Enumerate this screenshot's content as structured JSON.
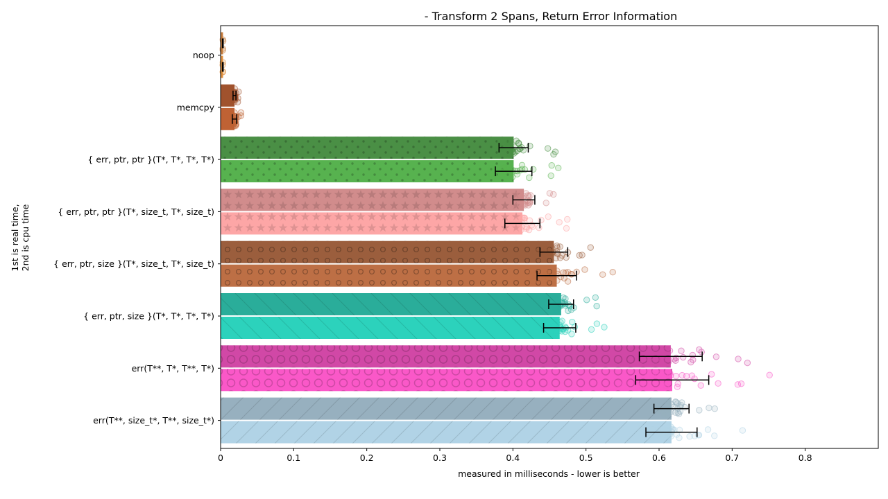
{
  "chart_data": {
    "type": "bar",
    "orientation": "horizontal",
    "title": "- Transform 2 Spans, Return Error Information",
    "xlabel": "measured in milliseconds - lower is better",
    "ylabel_line1": "1st is real time,",
    "ylabel_line2": "2nd is cpu time",
    "xlim": [
      0,
      0.9
    ],
    "x_ticks": [
      0,
      0.1,
      0.2,
      0.3,
      0.4,
      0.5,
      0.6,
      0.7,
      0.8
    ],
    "x_tick_labels": [
      "0",
      "0.1",
      "0.2",
      "0.3",
      "0.4",
      "0.5",
      "0.6",
      "0.7",
      "0.8"
    ],
    "grid": false,
    "series": [
      {
        "name": "real time"
      },
      {
        "name": "cpu time"
      }
    ],
    "categories": [
      {
        "label": "noop",
        "real": 0.003,
        "cpu": 0.003,
        "real_err": 0.0005,
        "cpu_err": 0.0005,
        "color_real": "#c97f3f",
        "color_cpu": "#e0903f",
        "pattern": "none"
      },
      {
        "label": "memcpy",
        "real": 0.019,
        "cpu": 0.019,
        "real_err": 0.002,
        "cpu_err": 0.003,
        "color_real": "#a0522d",
        "color_cpu": "#bf6234",
        "pattern": "none"
      },
      {
        "label": "{ err, ptr, ptr }(T*, T*, T*, T*)",
        "real": 0.401,
        "cpu": 0.401,
        "real_err": 0.02,
        "cpu_err": 0.025,
        "color_real": "#4a8f45",
        "color_cpu": "#57b24f",
        "pattern": "dots"
      },
      {
        "label": "{ err, ptr, ptr }(T*, size_t, T*, size_t)",
        "real": 0.415,
        "cpu": 0.413,
        "real_err": 0.015,
        "cpu_err": 0.024,
        "color_real": "#d18c8c",
        "color_cpu": "#fda6a6",
        "pattern": "stars"
      },
      {
        "label": "{ err, ptr, size }(T*, size_t, T*, size_t)",
        "real": 0.456,
        "cpu": 0.46,
        "real_err": 0.019,
        "cpu_err": 0.027,
        "color_real": "#9b5e3d",
        "color_cpu": "#bd6f45",
        "pattern": "small-circles"
      },
      {
        "label": "{ err, ptr, size }(T*, T*, T*, T*)",
        "real": 0.466,
        "cpu": 0.464,
        "real_err": 0.017,
        "cpu_err": 0.022,
        "color_real": "#2aad9a",
        "color_cpu": "#2cd2bc",
        "pattern": "backslash"
      },
      {
        "label": "err(T**, T*, T**, T*)",
        "real": 0.616,
        "cpu": 0.618,
        "real_err": 0.043,
        "cpu_err": 0.05,
        "color_real": "#d148a6",
        "color_cpu": "#fa58c8",
        "pattern": "large-circles"
      },
      {
        "label": "err(T**, size_t*, T**, size_t*)",
        "real": 0.617,
        "cpu": 0.617,
        "real_err": 0.024,
        "cpu_err": 0.035,
        "color_real": "#97b0bf",
        "color_cpu": "#b1d3e6",
        "pattern": "slash"
      }
    ]
  }
}
